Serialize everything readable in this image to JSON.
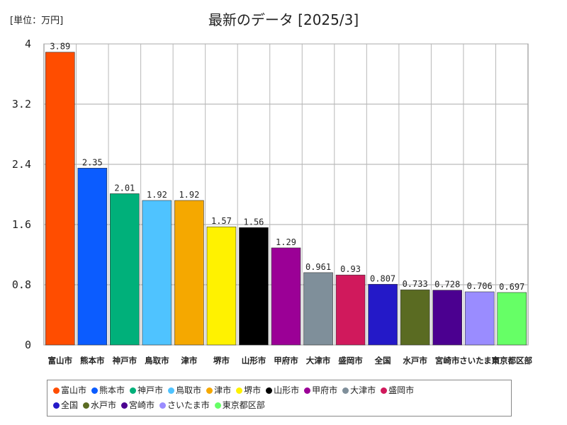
{
  "unit_label": "[単位：万円]",
  "chart_data": {
    "type": "bar",
    "title": "最新のデータ [2025/3]",
    "categories": [
      "富山市",
      "熊本市",
      "神戸市",
      "鳥取市",
      "津市",
      "堺市",
      "山形市",
      "甲府市",
      "大津市",
      "盛岡市",
      "全国",
      "水戸市",
      "宮崎市",
      "さいたま市",
      "東京都区部"
    ],
    "values": [
      3.89,
      2.35,
      2.01,
      1.92,
      1.92,
      1.57,
      1.56,
      1.29,
      0.961,
      0.93,
      0.807,
      0.733,
      0.728,
      0.706,
      0.697
    ],
    "value_labels": [
      "3.89",
      "2.35",
      "2.01",
      "1.92",
      "1.92",
      "1.57",
      "1.56",
      "1.29",
      "0.961",
      "0.93",
      "0.807",
      "0.733",
      "0.728",
      "0.706",
      "0.697"
    ],
    "colors": [
      "#ff4d00",
      "#0b5cff",
      "#00b07a",
      "#4fc3ff",
      "#f5a800",
      "#fff200",
      "#000000",
      "#9b0096",
      "#7f8f9a",
      "#d0195c",
      "#2419c8",
      "#5a6b22",
      "#4b0090",
      "#9a8cff",
      "#66ff66"
    ],
    "yticks": [
      "0",
      "0.8",
      "1.6",
      "2.4",
      "3.2",
      "4"
    ],
    "ylim": [
      0,
      4
    ],
    "grid": true,
    "legend_position": "bottom"
  }
}
